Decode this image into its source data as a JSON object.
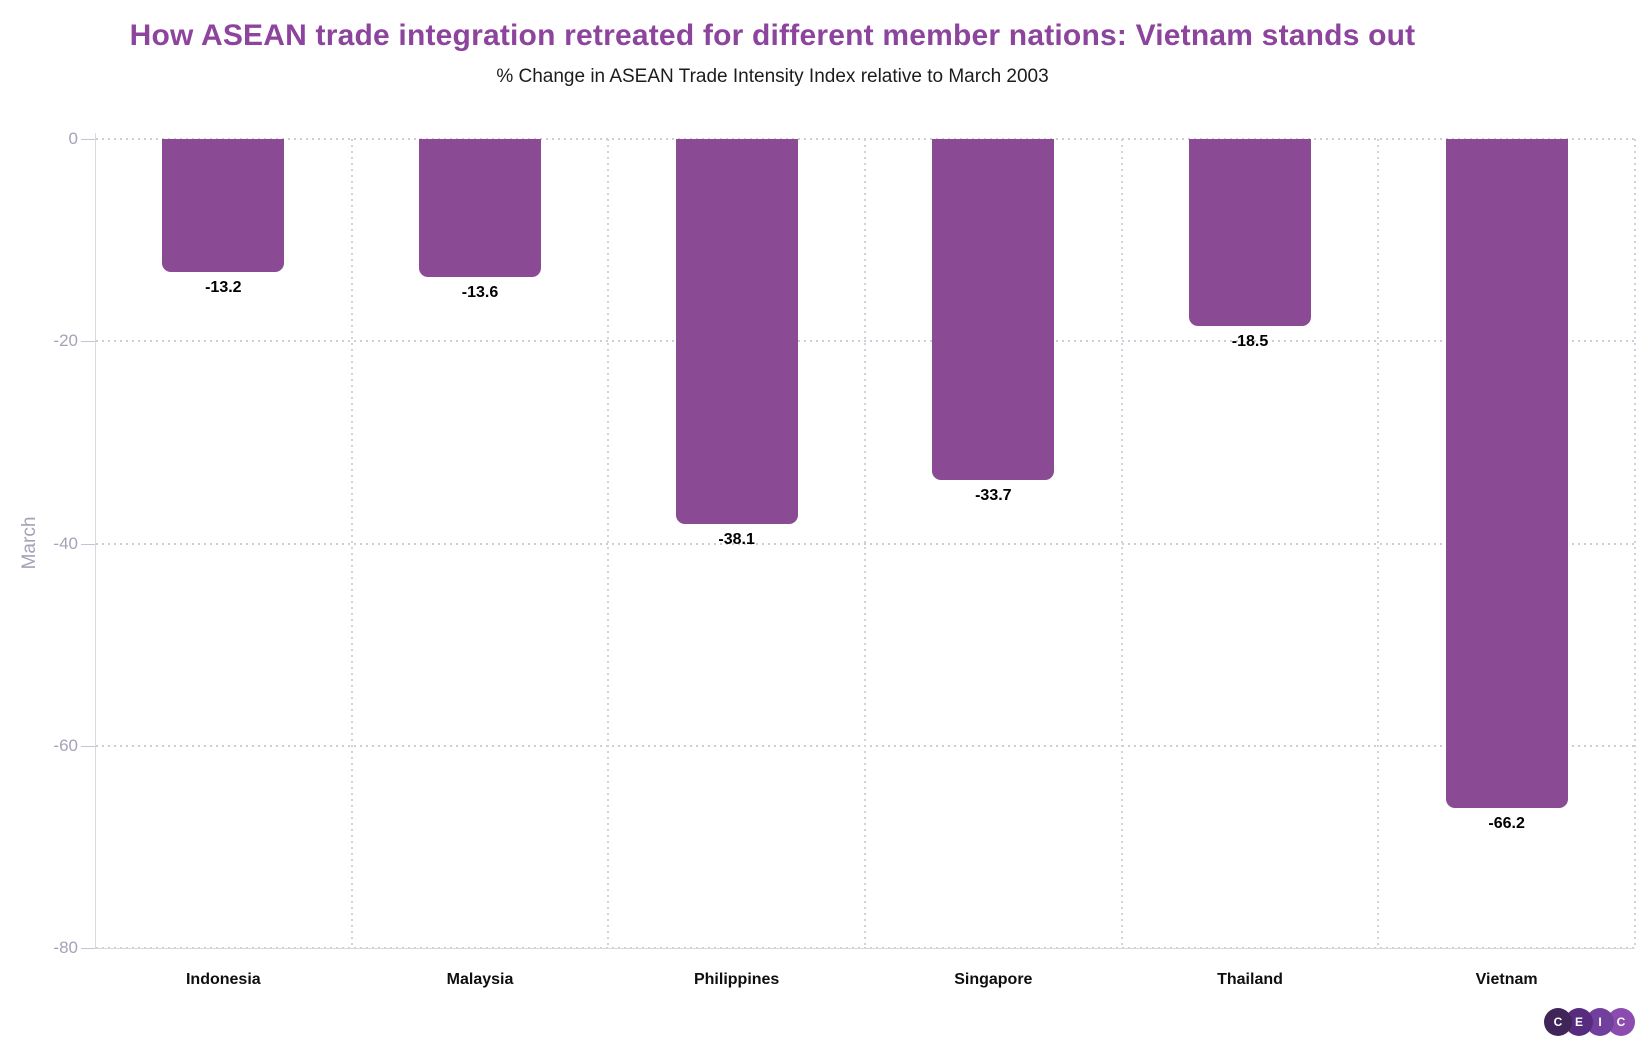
{
  "title": "How ASEAN trade integration retreated for different member nations: Vietnam stands out",
  "subtitle": "% Change in ASEAN Trade Intensity Index relative to March 2003",
  "y_axis": {
    "title": "March",
    "tick_labels": [
      "0",
      "-20",
      "-40",
      "-60",
      "-80"
    ],
    "tick_values": [
      0,
      -20,
      -40,
      -60,
      -80
    ]
  },
  "chart_data": {
    "type": "bar",
    "title": "How ASEAN trade integration retreated for different member nations: Vietnam stands out",
    "subtitle": "% Change in ASEAN Trade Intensity Index relative to March 2003",
    "categories": [
      "Indonesia",
      "Malaysia",
      "Philippines",
      "Singapore",
      "Thailand",
      "Vietnam"
    ],
    "values": [
      -13.2,
      -13.6,
      -38.1,
      -33.7,
      -18.5,
      -66.2
    ],
    "data_labels": [
      "-13.2",
      "-13.6",
      "-38.1",
      "-33.7",
      "-18.5",
      "-66.2"
    ],
    "xlabel": "",
    "ylabel": "March",
    "ylim": [
      -80,
      0
    ],
    "yticks": [
      0,
      -20,
      -40,
      -60,
      -80
    ],
    "grid": "dotted horizontal at each tick and dotted vertical between categories",
    "legend": false,
    "bar_color": "#8a4b94"
  },
  "branding": {
    "logo_name": "CEIC",
    "logo_circles": [
      {
        "letter": "C",
        "color": "#3f2558"
      },
      {
        "letter": "E",
        "color": "#572c7e"
      },
      {
        "letter": "I",
        "color": "#71409c"
      },
      {
        "letter": "C",
        "color": "#8c4bae"
      }
    ]
  },
  "colors": {
    "title": "#8d449d",
    "bar": "#8a4b94",
    "axis_text": "#a5a2b8",
    "grid_dots": "#cfccda",
    "axis_line": "#d9d7e0"
  }
}
